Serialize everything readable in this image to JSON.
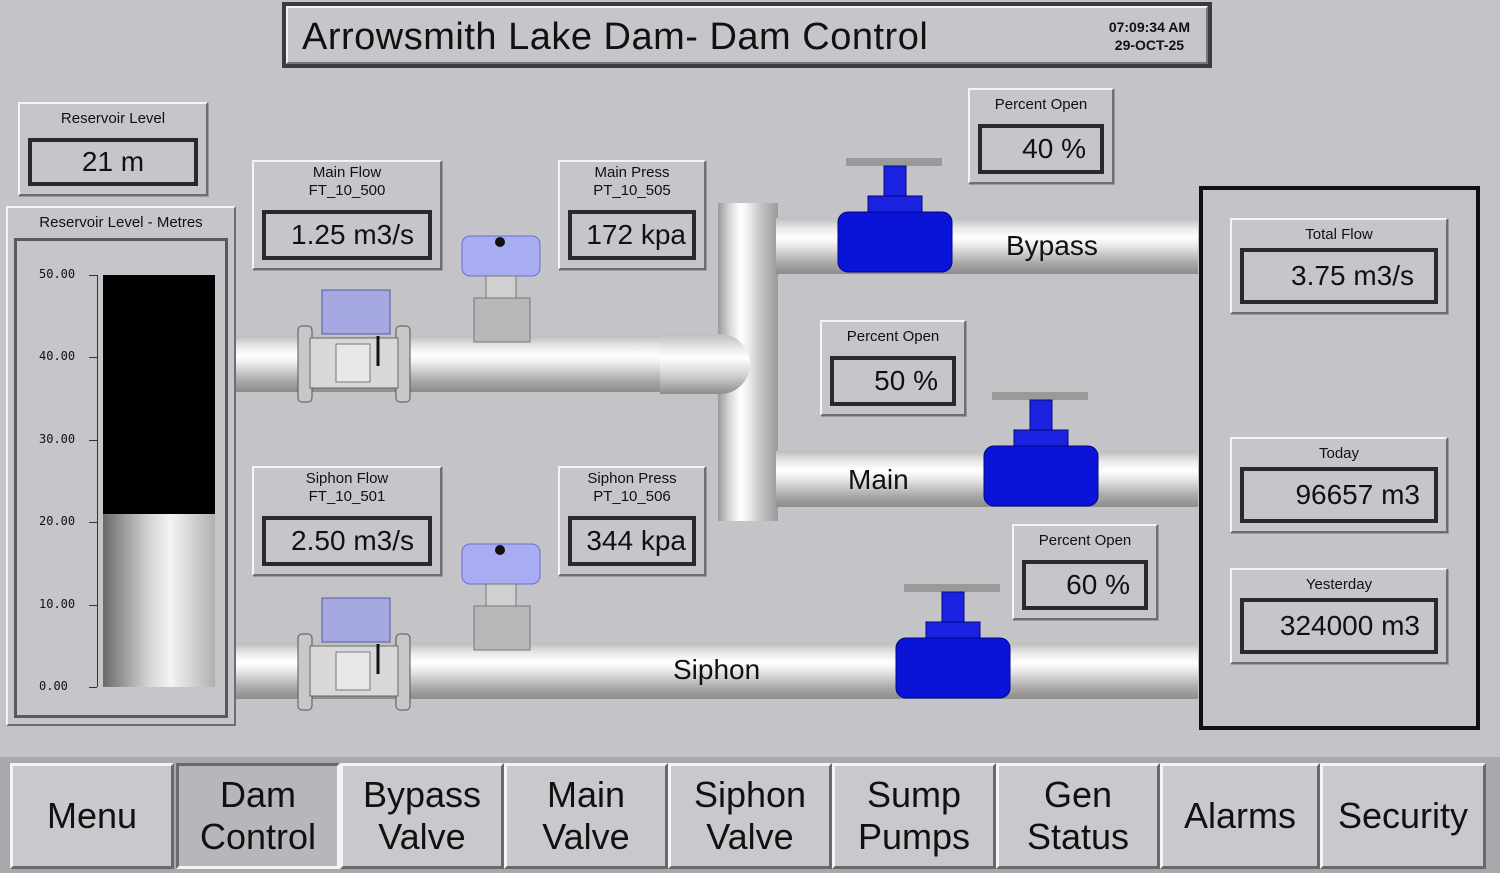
{
  "header": {
    "title": "Arrowsmith Lake Dam- Dam Control",
    "time": "07:09:34 AM",
    "date": "29-OCT-25"
  },
  "reservoir": {
    "level_label": "Reservoir Level",
    "level_value": "21 m",
    "chart_label": "Reservoir Level - Metres",
    "ticks": [
      "50.00",
      "40.00",
      "30.00",
      "20.00",
      "10.00",
      "0.00"
    ],
    "fill_level_m": 21,
    "max_m": 50
  },
  "main_flow": {
    "label1": "Main Flow",
    "label2": "FT_10_500",
    "value": "1.25 m3/s"
  },
  "main_press": {
    "label1": "Main Press",
    "label2": "PT_10_505",
    "value": "172 kpa"
  },
  "siphon_flow": {
    "label1": "Siphon Flow",
    "label2": "FT_10_501",
    "value": "2.50 m3/s"
  },
  "siphon_press": {
    "label1": "Siphon Press",
    "label2": "PT_10_506",
    "value": "344 kpa"
  },
  "bypass_valve": {
    "label": "Percent Open",
    "value": "40 %"
  },
  "main_valve": {
    "label": "Percent Open",
    "value": "50 %"
  },
  "siphon_valve": {
    "label": "Percent Open",
    "value": "60 %"
  },
  "pipes": {
    "bypass": "Bypass",
    "main": "Main",
    "siphon": "Siphon"
  },
  "totals": {
    "total_flow_label": "Total Flow",
    "total_flow_value": "3.75  m3/s",
    "today_label": "Today",
    "today_value": "96657 m3",
    "yesterday_label": "Yesterday",
    "yesterday_value": "324000 m3"
  },
  "nav": {
    "menu": "Menu",
    "dam_control": "Dam Control",
    "bypass_valve": "Bypass Valve",
    "main_valve": "Main Valve",
    "siphon_valve": "Siphon Valve",
    "sump_pumps": "Sump Pumps",
    "gen_status": "Gen Status",
    "alarms": "Alarms",
    "security": "Security"
  },
  "colors": {
    "valve_blue": "#0a14d8",
    "background": "#c4c4c8"
  }
}
